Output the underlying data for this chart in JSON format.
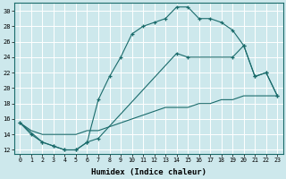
{
  "xlabel": "Humidex (Indice chaleur)",
  "bg_color": "#cde8ec",
  "line_color": "#1a6b6b",
  "grid_color": "#ffffff",
  "xlim": [
    -0.5,
    23.5
  ],
  "ylim": [
    11.5,
    31.0
  ],
  "xticks": [
    0,
    1,
    2,
    3,
    4,
    5,
    6,
    7,
    8,
    9,
    10,
    11,
    12,
    13,
    14,
    15,
    16,
    17,
    18,
    19,
    20,
    21,
    22,
    23
  ],
  "yticks": [
    12,
    14,
    16,
    18,
    20,
    22,
    24,
    26,
    28,
    30
  ],
  "line1_x": [
    0,
    1,
    2,
    3,
    4,
    5,
    6,
    7,
    8,
    9,
    10,
    11,
    12,
    13,
    14,
    15,
    16,
    17,
    18,
    19,
    20,
    21,
    22,
    23
  ],
  "line1_y": [
    15.5,
    14.0,
    13.0,
    12.5,
    12.0,
    12.0,
    13.0,
    18.5,
    21.5,
    24.0,
    27.0,
    28.0,
    28.5,
    29.0,
    30.5,
    30.5,
    29.0,
    29.0,
    28.5,
    27.5,
    25.5,
    21.5,
    22.0,
    19.0
  ],
  "line2_x": [
    0,
    2,
    3,
    4,
    5,
    6,
    7,
    14,
    15,
    19,
    20,
    21,
    22,
    23
  ],
  "line2_y": [
    15.5,
    13.0,
    12.5,
    12.0,
    12.0,
    13.0,
    13.5,
    24.5,
    24.0,
    24.0,
    25.5,
    21.5,
    22.0,
    19.0
  ],
  "line3_x": [
    0,
    1,
    2,
    3,
    4,
    5,
    6,
    7,
    8,
    9,
    10,
    11,
    12,
    13,
    14,
    15,
    16,
    17,
    18,
    19,
    20,
    21,
    22,
    23
  ],
  "line3_y": [
    15.5,
    14.5,
    14.0,
    14.0,
    14.0,
    14.0,
    14.5,
    14.5,
    15.0,
    15.5,
    16.0,
    16.5,
    17.0,
    17.5,
    17.5,
    17.5,
    18.0,
    18.0,
    18.5,
    18.5,
    19.0,
    19.0,
    19.0,
    19.0
  ]
}
